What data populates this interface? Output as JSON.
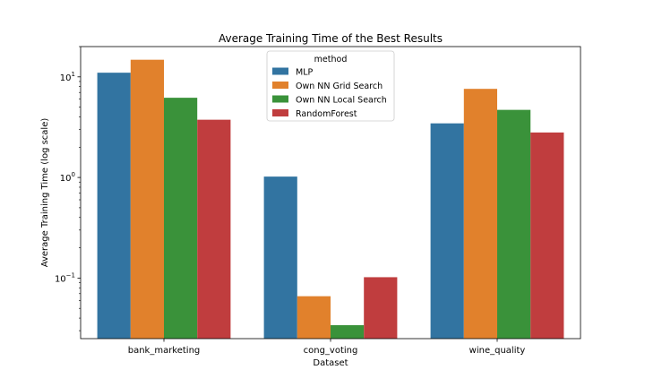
{
  "chart_data": {
    "type": "bar",
    "title": "Average Training Time of the Best Results",
    "xlabel": "Dataset",
    "ylabel": "Average Training Time (log scale)",
    "yscale": "log",
    "ylim": [
      0.025,
      20
    ],
    "yticks": [
      {
        "value": 0.1,
        "base": "10",
        "exp": "−1"
      },
      {
        "value": 1,
        "base": "10",
        "exp": "0"
      },
      {
        "value": 10,
        "base": "10",
        "exp": "1"
      }
    ],
    "categories": [
      "bank_marketing",
      "cong_voting",
      "wine_quality"
    ],
    "legend": {
      "title": "method",
      "position": "upper-center"
    },
    "series": [
      {
        "name": "MLP",
        "color": "#3274a1",
        "values": [
          11.0,
          1.02,
          3.45
        ]
      },
      {
        "name": "Own NN Grid Search",
        "color": "#e1812c",
        "values": [
          14.8,
          0.066,
          7.6
        ]
      },
      {
        "name": "Own NN Local Search",
        "color": "#3a923a",
        "values": [
          6.2,
          0.034,
          4.7
        ]
      },
      {
        "name": "RandomForest",
        "color": "#c03d3e",
        "values": [
          3.75,
          0.102,
          2.8
        ]
      }
    ]
  }
}
